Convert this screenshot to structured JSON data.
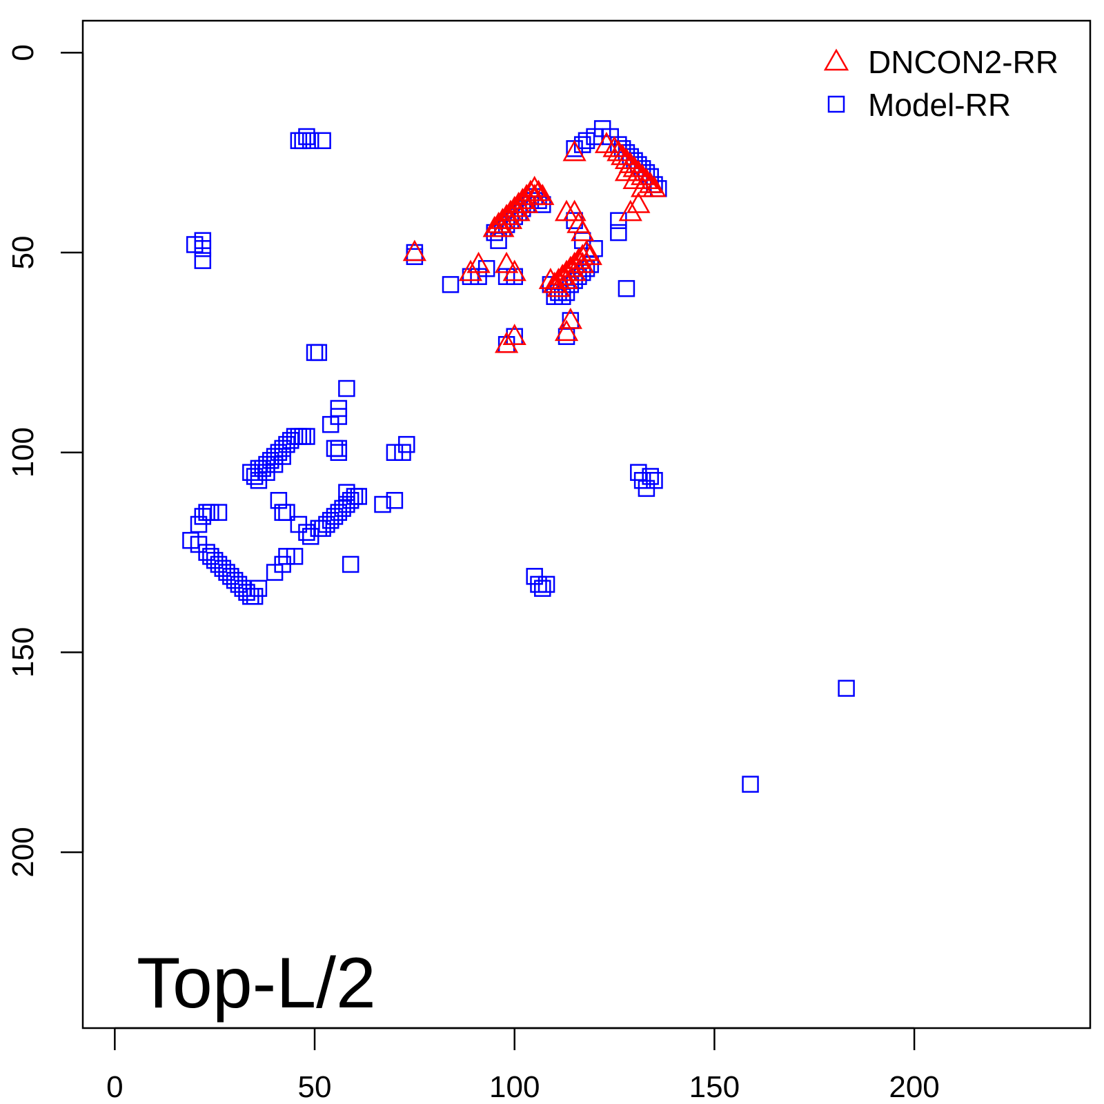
{
  "chart_data": {
    "type": "scatter",
    "title": "",
    "xlabel": "",
    "ylabel": "",
    "xlim": [
      -8,
      244
    ],
    "ylim": [
      244,
      -8
    ],
    "y_axis_inverted": true,
    "x_ticks": [
      0,
      50,
      100,
      150,
      200
    ],
    "y_ticks": [
      0,
      50,
      100,
      150,
      200
    ],
    "x_tick_labels": [
      "0",
      "50",
      "100",
      "150",
      "200"
    ],
    "y_tick_labels": [
      "0",
      "50",
      "100",
      "150",
      "200"
    ],
    "grid": false,
    "annotation": "Top-L/2",
    "legend": {
      "placement": "top-right",
      "entries": [
        {
          "label": "DNCON2-RR",
          "color": "#ff0000",
          "marker": "triangle"
        },
        {
          "label": "Model-RR",
          "color": "#0000ff",
          "marker": "square"
        }
      ]
    },
    "series": [
      {
        "name": "DNCON2-RR",
        "color": "#ff0000",
        "marker": "triangle",
        "points": [
          [
            75,
            50
          ],
          [
            89,
            55
          ],
          [
            91,
            53
          ],
          [
            98,
            53
          ],
          [
            100,
            55
          ],
          [
            98,
            73
          ],
          [
            100,
            71
          ],
          [
            95,
            44
          ],
          [
            96,
            43
          ],
          [
            97,
            42
          ],
          [
            98,
            41
          ],
          [
            99,
            40
          ],
          [
            100,
            39
          ],
          [
            101,
            38
          ],
          [
            102,
            37
          ],
          [
            103,
            36
          ],
          [
            104,
            35
          ],
          [
            105,
            34
          ],
          [
            106,
            35
          ],
          [
            107,
            36
          ],
          [
            97,
            44
          ],
          [
            99,
            42
          ],
          [
            101,
            40
          ],
          [
            103,
            38
          ],
          [
            105,
            36
          ],
          [
            109,
            57
          ],
          [
            110,
            58
          ],
          [
            111,
            57
          ],
          [
            112,
            56
          ],
          [
            113,
            55
          ],
          [
            114,
            54
          ],
          [
            115,
            53
          ],
          [
            116,
            52
          ],
          [
            117,
            51
          ],
          [
            118,
            50
          ],
          [
            119,
            51
          ],
          [
            111,
            59
          ],
          [
            113,
            57
          ],
          [
            115,
            55
          ],
          [
            117,
            53
          ],
          [
            113,
            40
          ],
          [
            115,
            40
          ],
          [
            116,
            43
          ],
          [
            117,
            45
          ],
          [
            113,
            70
          ],
          [
            114,
            67
          ],
          [
            115,
            25
          ],
          [
            123,
            23
          ],
          [
            125,
            24
          ],
          [
            126,
            25
          ],
          [
            127,
            26
          ],
          [
            128,
            27
          ],
          [
            129,
            28
          ],
          [
            130,
            29
          ],
          [
            131,
            30
          ],
          [
            132,
            31
          ],
          [
            133,
            32
          ],
          [
            134,
            33
          ],
          [
            135,
            34
          ],
          [
            128,
            30
          ],
          [
            130,
            32
          ],
          [
            132,
            34
          ],
          [
            129,
            40
          ],
          [
            131,
            38
          ]
        ]
      },
      {
        "name": "Model-RR",
        "color": "#0000ff",
        "marker": "square",
        "points": [
          [
            47,
            22
          ],
          [
            48,
            21
          ],
          [
            49,
            22
          ],
          [
            52,
            22
          ],
          [
            46,
            22
          ],
          [
            20,
            48
          ],
          [
            22,
            47
          ],
          [
            22,
            49
          ],
          [
            22,
            52
          ],
          [
            75,
            50
          ],
          [
            75,
            51
          ],
          [
            84,
            58
          ],
          [
            89,
            56
          ],
          [
            91,
            56
          ],
          [
            93,
            54
          ],
          [
            95,
            45
          ],
          [
            96,
            47
          ],
          [
            97,
            44
          ],
          [
            98,
            43
          ],
          [
            99,
            42
          ],
          [
            100,
            41
          ],
          [
            101,
            40
          ],
          [
            102,
            39
          ],
          [
            103,
            38
          ],
          [
            104,
            37
          ],
          [
            105,
            36
          ],
          [
            106,
            37
          ],
          [
            107,
            38
          ],
          [
            98,
            56
          ],
          [
            100,
            56
          ],
          [
            98,
            73
          ],
          [
            100,
            71
          ],
          [
            109,
            58
          ],
          [
            110,
            61
          ],
          [
            111,
            60
          ],
          [
            112,
            61
          ],
          [
            113,
            60
          ],
          [
            114,
            58
          ],
          [
            115,
            57
          ],
          [
            116,
            56
          ],
          [
            117,
            55
          ],
          [
            118,
            54
          ],
          [
            119,
            53
          ],
          [
            120,
            49
          ],
          [
            113,
            71
          ],
          [
            114,
            67
          ],
          [
            115,
            24
          ],
          [
            117,
            23
          ],
          [
            118,
            22
          ],
          [
            120,
            21
          ],
          [
            122,
            19
          ],
          [
            124,
            21
          ],
          [
            126,
            23
          ],
          [
            127,
            24
          ],
          [
            128,
            25
          ],
          [
            129,
            26
          ],
          [
            130,
            27
          ],
          [
            131,
            28
          ],
          [
            132,
            29
          ],
          [
            133,
            30
          ],
          [
            134,
            31
          ],
          [
            135,
            33
          ],
          [
            136,
            34
          ],
          [
            115,
            42
          ],
          [
            117,
            47
          ],
          [
            126,
            42
          ],
          [
            126,
            45
          ],
          [
            128,
            59
          ],
          [
            50,
            75
          ],
          [
            51,
            75
          ],
          [
            58,
            84
          ],
          [
            56,
            89
          ],
          [
            56,
            91
          ],
          [
            54,
            93
          ],
          [
            55,
            99
          ],
          [
            56,
            99
          ],
          [
            56,
            100
          ],
          [
            37,
            104
          ],
          [
            38,
            103
          ],
          [
            39,
            102
          ],
          [
            40,
            101
          ],
          [
            41,
            100
          ],
          [
            42,
            99
          ],
          [
            43,
            98
          ],
          [
            44,
            97
          ],
          [
            45,
            96
          ],
          [
            46,
            96
          ],
          [
            47,
            96
          ],
          [
            48,
            96
          ],
          [
            34,
            105
          ],
          [
            35,
            106
          ],
          [
            36,
            107
          ],
          [
            36,
            104
          ],
          [
            38,
            105
          ],
          [
            40,
            103
          ],
          [
            42,
            101
          ],
          [
            70,
            100
          ],
          [
            72,
            100
          ],
          [
            73,
            98
          ],
          [
            67,
            113
          ],
          [
            70,
            112
          ],
          [
            41,
            112
          ],
          [
            42,
            115
          ],
          [
            43,
            115
          ],
          [
            46,
            118
          ],
          [
            48,
            120
          ],
          [
            49,
            121
          ],
          [
            51,
            119
          ],
          [
            52,
            119
          ],
          [
            53,
            118
          ],
          [
            54,
            117
          ],
          [
            55,
            116
          ],
          [
            56,
            115
          ],
          [
            57,
            114
          ],
          [
            58,
            113
          ],
          [
            59,
            112
          ],
          [
            60,
            111
          ],
          [
            61,
            111
          ],
          [
            58,
            110
          ],
          [
            59,
            128
          ],
          [
            19,
            122
          ],
          [
            21,
            123
          ],
          [
            21,
            118
          ],
          [
            22,
            116
          ],
          [
            23,
            115
          ],
          [
            24,
            115
          ],
          [
            26,
            115
          ],
          [
            23,
            125
          ],
          [
            24,
            126
          ],
          [
            25,
            127
          ],
          [
            26,
            128
          ],
          [
            27,
            129
          ],
          [
            28,
            130
          ],
          [
            29,
            131
          ],
          [
            30,
            132
          ],
          [
            31,
            133
          ],
          [
            32,
            134
          ],
          [
            33,
            135
          ],
          [
            34,
            136
          ],
          [
            35,
            136
          ],
          [
            36,
            134
          ],
          [
            40,
            130
          ],
          [
            42,
            128
          ],
          [
            43,
            126
          ],
          [
            45,
            126
          ],
          [
            105,
            131
          ],
          [
            106,
            133
          ],
          [
            107,
            134
          ],
          [
            108,
            133
          ],
          [
            131,
            105
          ],
          [
            132,
            107
          ],
          [
            133,
            109
          ],
          [
            134,
            106
          ],
          [
            135,
            107
          ],
          [
            183,
            159
          ],
          [
            159,
            183
          ]
        ]
      }
    ]
  }
}
